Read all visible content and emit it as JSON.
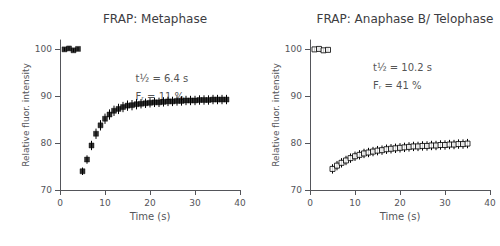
{
  "chart_data": [
    {
      "type": "scatter",
      "title": "FRAP: Metaphase",
      "x_label": "Time (s)",
      "y_label": "Relative fluor. intensity",
      "xlim": [
        0,
        40
      ],
      "xticks": [
        0,
        10,
        20,
        30,
        40
      ],
      "ylim": [
        70,
        102
      ],
      "yticks": [
        70,
        80,
        90,
        100
      ],
      "grid": false,
      "marker": "square",
      "color": "#000000",
      "x": [
        1,
        2,
        3,
        4,
        5,
        6,
        7,
        8,
        9,
        10,
        11,
        12,
        13,
        14,
        15,
        16,
        17,
        18,
        19,
        20,
        21,
        22,
        23,
        24,
        25,
        26,
        27,
        28,
        29,
        30,
        31,
        32,
        33,
        34,
        35,
        36,
        37
      ],
      "values": [
        100.0,
        100.2,
        99.8,
        100.1,
        74.0,
        76.5,
        79.5,
        82.0,
        83.8,
        85.2,
        86.1,
        86.9,
        87.3,
        87.7,
        88.0,
        88.1,
        88.3,
        88.4,
        88.5,
        88.6,
        88.7,
        88.7,
        88.8,
        88.9,
        88.9,
        89.0,
        89.0,
        89.1,
        89.1,
        89.1,
        89.2,
        89.2,
        89.2,
        89.3,
        89.3,
        89.3,
        89.3
      ],
      "errors": [
        0.4,
        0.4,
        0.4,
        0.4,
        0.8,
        0.9,
        1.0,
        1.1,
        1.1,
        1.1,
        1.1,
        1.1,
        1.1,
        1.1,
        1.1,
        1.1,
        1.1,
        1.0,
        1.0,
        1.0,
        1.0,
        1.0,
        1.0,
        1.0,
        1.0,
        1.0,
        1.0,
        1.0,
        1.0,
        1.0,
        1.0,
        1.0,
        1.0,
        1.0,
        1.0,
        1.0,
        1.0
      ],
      "annotations": [
        "t½ = 6.4 s",
        "Fᵣ = 11 %"
      ]
    },
    {
      "type": "scatter",
      "title": "FRAP: Anaphase B/ Telophase",
      "x_label": "Time (s)",
      "y_label": "Relative fluor. intensity",
      "xlim": [
        0,
        40
      ],
      "xticks": [
        0,
        10,
        20,
        30,
        40
      ],
      "ylim": [
        70,
        102
      ],
      "yticks": [
        70,
        80,
        90,
        100
      ],
      "grid": false,
      "marker": "open-square",
      "color": "#000000",
      "x": [
        1,
        2,
        3,
        4,
        5,
        6,
        7,
        8,
        9,
        10,
        11,
        12,
        13,
        14,
        15,
        16,
        17,
        18,
        19,
        20,
        21,
        22,
        23,
        24,
        25,
        26,
        27,
        28,
        29,
        30,
        31,
        32,
        33,
        34,
        35
      ],
      "values": [
        100.0,
        100.1,
        99.8,
        99.9,
        74.5,
        75.2,
        75.8,
        76.3,
        76.8,
        77.2,
        77.5,
        77.8,
        78.0,
        78.2,
        78.4,
        78.5,
        78.7,
        78.8,
        78.9,
        79.0,
        79.1,
        79.2,
        79.3,
        79.3,
        79.4,
        79.4,
        79.5,
        79.5,
        79.6,
        79.6,
        79.7,
        79.7,
        79.8,
        79.8,
        79.9
      ],
      "errors": [
        0.4,
        0.4,
        0.4,
        0.4,
        1.0,
        1.0,
        1.0,
        1.0,
        1.0,
        1.0,
        1.0,
        1.0,
        1.0,
        1.0,
        1.0,
        1.0,
        1.0,
        1.0,
        1.0,
        1.0,
        1.0,
        1.0,
        1.0,
        1.0,
        1.0,
        1.0,
        1.0,
        1.0,
        1.0,
        1.0,
        1.0,
        1.0,
        1.0,
        1.0,
        1.0
      ],
      "annotations": [
        "t½ = 10.2 s",
        "Fᵣ = 41 %"
      ]
    }
  ]
}
